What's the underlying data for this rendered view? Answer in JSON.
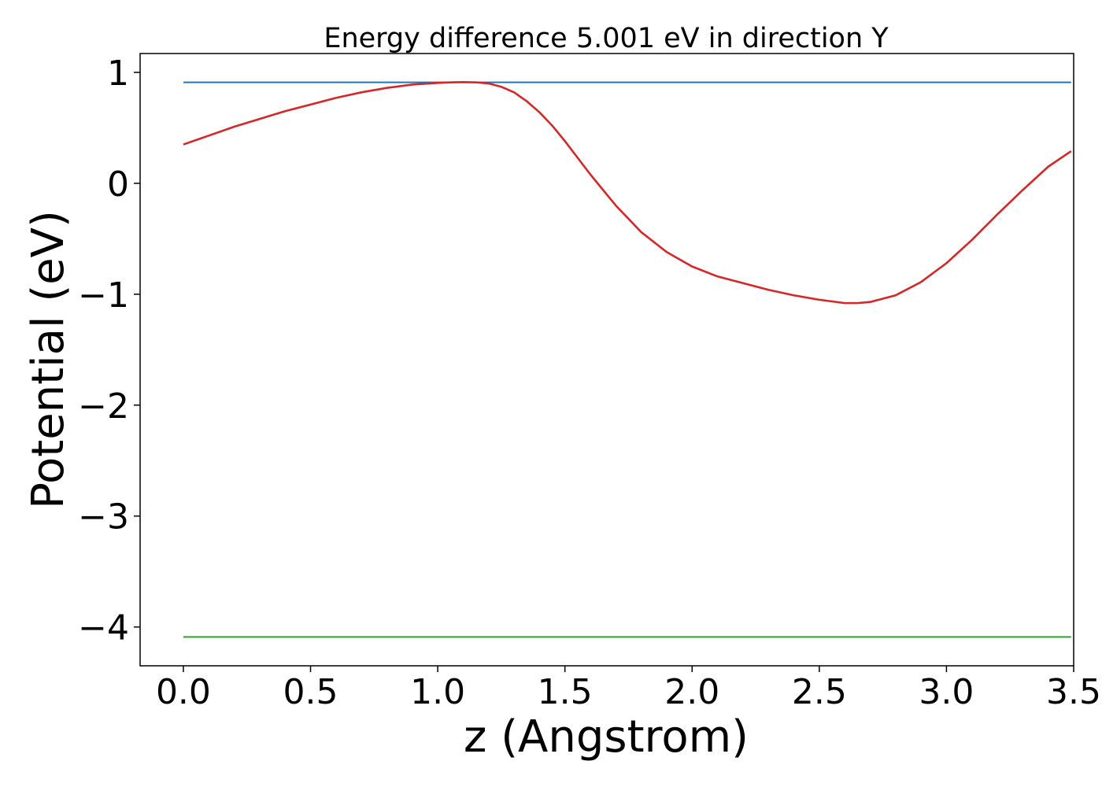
{
  "chart_data": {
    "type": "line",
    "title": "Energy difference 5.001 eV in direction Y",
    "xlabel": "z (Angstrom)",
    "ylabel": "Potential (eV)",
    "xlim": [
      -0.17,
      3.5
    ],
    "ylim": [
      -4.35,
      1.17
    ],
    "xticks": [
      0.0,
      0.5,
      1.0,
      1.5,
      2.0,
      2.5,
      3.0,
      3.5
    ],
    "xtick_labels": [
      "0.0",
      "0.5",
      "1.0",
      "1.5",
      "2.0",
      "2.5",
      "3.0",
      "3.5"
    ],
    "yticks": [
      1,
      0,
      -1,
      -2,
      -3,
      -4
    ],
    "ytick_labels": [
      "1",
      "0",
      "−1",
      "−2",
      "−3",
      "−4"
    ],
    "grid": false,
    "series": [
      {
        "color": "#1f77b4",
        "x": [
          0.0,
          3.49
        ],
        "y": [
          0.91,
          0.91
        ]
      },
      {
        "color": "#2ca02c",
        "x": [
          0.0,
          3.49
        ],
        "y": [
          -4.09,
          -4.09
        ]
      },
      {
        "color": "#d62728",
        "x": [
          0.0,
          0.1,
          0.2,
          0.3,
          0.4,
          0.5,
          0.6,
          0.7,
          0.8,
          0.9,
          1.0,
          1.05,
          1.1,
          1.15,
          1.2,
          1.25,
          1.3,
          1.35,
          1.4,
          1.45,
          1.5,
          1.55,
          1.6,
          1.7,
          1.8,
          1.9,
          2.0,
          2.1,
          2.2,
          2.3,
          2.4,
          2.5,
          2.6,
          2.65,
          2.7,
          2.8,
          2.9,
          3.0,
          3.1,
          3.2,
          3.3,
          3.4,
          3.49
        ],
        "y": [
          0.35,
          0.43,
          0.51,
          0.58,
          0.65,
          0.71,
          0.77,
          0.82,
          0.86,
          0.89,
          0.905,
          0.91,
          0.912,
          0.91,
          0.9,
          0.87,
          0.82,
          0.74,
          0.64,
          0.52,
          0.38,
          0.23,
          0.08,
          -0.2,
          -0.44,
          -0.62,
          -0.75,
          -0.84,
          -0.9,
          -0.96,
          -1.01,
          -1.05,
          -1.08,
          -1.08,
          -1.07,
          -1.01,
          -0.89,
          -0.72,
          -0.51,
          -0.28,
          -0.06,
          0.15,
          0.29
        ]
      }
    ]
  }
}
